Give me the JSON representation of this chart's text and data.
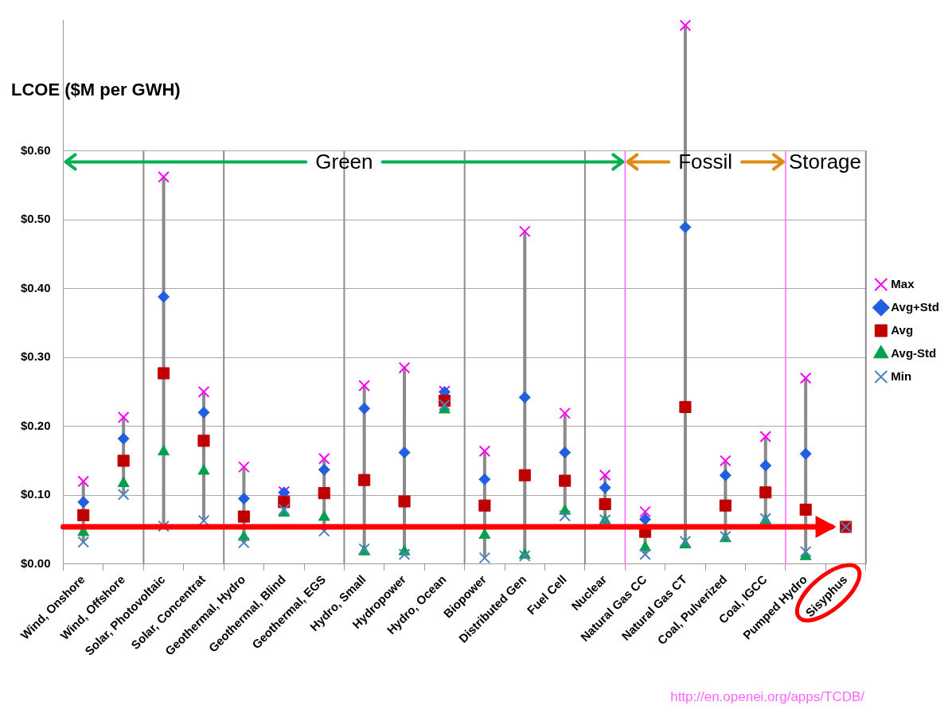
{
  "chart_data": {
    "type": "scatter",
    "ylabel": "LCOE ($M per GWH)",
    "categories": [
      "Wind, Onshore",
      "Wind, Offshore",
      "Solar, Photovoltaic",
      "Solar, Concentrat",
      "Geothermal, Hydro",
      "Geothermal, Blind",
      "Geothermal, EGS",
      "Hydro, Small",
      "Hydropower",
      "Hydro, Ocean",
      "Biopower",
      "Distributed Gen",
      "Fuel Cell",
      "Nuclear",
      "Natural Gas CC",
      "Natural Gas CT",
      "Coal, Pulverized",
      "Coal, IGCC",
      "Pumped Hydro",
      "Sisyphus"
    ],
    "series": [
      {
        "name": "Max",
        "color": "#ff00ff",
        "marker": "cross",
        "values": [
          0.12,
          0.213,
          0.562,
          0.25,
          0.141,
          0.105,
          0.153,
          0.259,
          0.285,
          0.251,
          0.164,
          0.483,
          0.219,
          0.129,
          0.076,
          0.782,
          0.15,
          0.185,
          0.27,
          null
        ]
      },
      {
        "name": "Avg+Std",
        "color": "#1f5fe0",
        "marker": "diamond",
        "values": [
          0.09,
          0.182,
          0.388,
          0.22,
          0.095,
          0.104,
          0.137,
          0.226,
          0.162,
          0.25,
          0.123,
          0.242,
          0.162,
          0.111,
          0.065,
          0.489,
          0.129,
          0.143,
          0.16,
          null
        ]
      },
      {
        "name": "Avg",
        "color": "#c00000",
        "marker": "square",
        "values": [
          0.071,
          0.15,
          0.277,
          0.179,
          0.069,
          0.09,
          0.103,
          0.122,
          0.091,
          0.237,
          0.085,
          0.129,
          0.121,
          0.087,
          0.047,
          0.228,
          0.085,
          0.104,
          0.079,
          0.054
        ]
      },
      {
        "name": "Avg-Std",
        "color": "#00a050",
        "marker": "triangle",
        "values": [
          0.046,
          0.117,
          0.163,
          0.135,
          0.039,
          0.074,
          0.068,
          0.018,
          0.018,
          0.224,
          0.042,
          0.013,
          0.077,
          0.063,
          0.024,
          0.028,
          0.037,
          0.063,
          0.011,
          null
        ]
      },
      {
        "name": "Min",
        "color": "#4f81bd",
        "marker": "cross",
        "values": [
          0.032,
          0.101,
          0.055,
          0.063,
          0.031,
          0.079,
          0.048,
          0.022,
          0.014,
          0.231,
          0.009,
          0.012,
          0.07,
          0.064,
          0.014,
          0.033,
          0.04,
          0.066,
          0.018,
          0.054
        ]
      }
    ],
    "ylim": [
      0,
      0.79
    ],
    "yticks": [
      {
        "value": 0,
        "label": "$0.00"
      },
      {
        "value": 0.1,
        "label": "$0.10"
      },
      {
        "value": 0.2,
        "label": "$0.20"
      },
      {
        "value": 0.3,
        "label": "$0.30"
      },
      {
        "value": 0.4,
        "label": "$0.40"
      },
      {
        "value": 0.5,
        "label": "$0.50"
      },
      {
        "value": 0.6,
        "label": "$0.60"
      }
    ],
    "grid": "y",
    "legend": "right",
    "ref_lines": [
      {
        "axis": "y",
        "value": 0.054,
        "color": "#ff0000"
      }
    ],
    "annotations": [
      "Green",
      "Fossil",
      "Storage",
      "http://en.openei.org/apps/TCDB/"
    ]
  }
}
